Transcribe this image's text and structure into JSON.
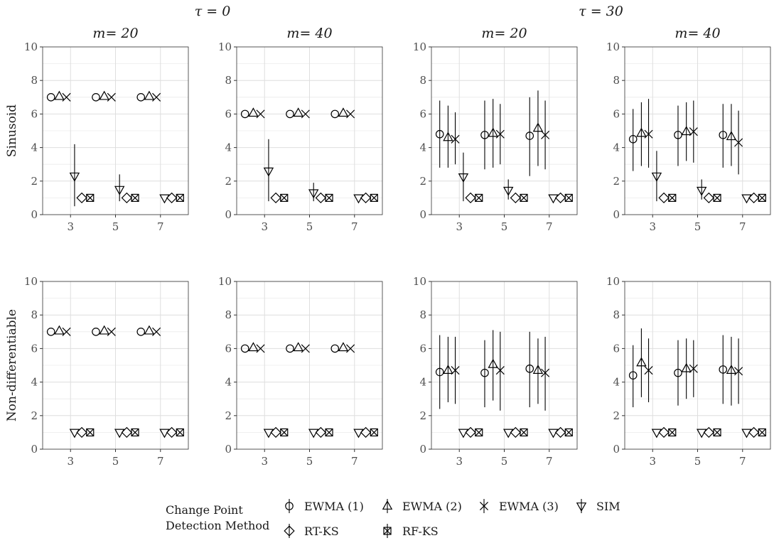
{
  "chart_data": {
    "type": "scatter",
    "title": "",
    "ylim": [
      0,
      10
    ],
    "y_ticks": [
      0,
      2,
      4,
      6,
      8,
      10
    ],
    "x_categories": [
      3,
      5,
      7
    ],
    "x_tick_labels": [
      "3",
      "5",
      "7"
    ],
    "grid": true,
    "tau_headers": [
      "τ = 0",
      "τ = 30"
    ],
    "m_headers": [
      "m= 20",
      "m= 40",
      "m= 20",
      "m= 40"
    ],
    "row_labels": [
      "Sinusoid",
      "Non-differentiable"
    ],
    "legend": {
      "position": "bottom",
      "title_lines": [
        "Change Point",
        "Detection Method"
      ],
      "entries": [
        {
          "name": "EWMA (1)",
          "shape": "circle-icon"
        },
        {
          "name": "EWMA (2)",
          "shape": "triangle-icon"
        },
        {
          "name": "EWMA (3)",
          "shape": "x-icon"
        },
        {
          "name": "SIM",
          "shape": "down-triangle-icon"
        },
        {
          "name": "RT-KS",
          "shape": "diamond-icon"
        },
        {
          "name": "RF-KS",
          "shape": "boxed-x-icon"
        }
      ]
    },
    "methods": [
      "EWMA (1)",
      "EWMA (2)",
      "EWMA (3)",
      "SIM",
      "RT-KS",
      "RF-KS"
    ],
    "panels": [
      {
        "tau": "τ = 0",
        "m": "m= 20",
        "row": "Sinusoid",
        "series": [
          {
            "method": "EWMA (1)",
            "means": [
              7.0,
              7.0,
              7.0
            ],
            "lower": [
              7.0,
              7.0,
              7.0
            ],
            "upper": [
              7.0,
              7.0,
              7.0
            ]
          },
          {
            "method": "EWMA (2)",
            "means": [
              7.05,
              7.05,
              7.05
            ],
            "lower": [
              7.05,
              7.05,
              7.05
            ],
            "upper": [
              7.05,
              7.05,
              7.05
            ]
          },
          {
            "method": "EWMA (3)",
            "means": [
              7.0,
              7.0,
              7.0
            ],
            "lower": [
              7.0,
              7.0,
              7.0
            ],
            "upper": [
              7.0,
              7.0,
              7.0
            ]
          },
          {
            "method": "SIM",
            "means": [
              2.3,
              1.5,
              1.0
            ],
            "lower": [
              0.5,
              0.8,
              1.0
            ],
            "upper": [
              4.2,
              2.4,
              1.0
            ]
          },
          {
            "method": "RT-KS",
            "means": [
              1.0,
              1.0,
              1.0
            ],
            "lower": [
              1.0,
              1.0,
              1.0
            ],
            "upper": [
              1.0,
              1.0,
              1.0
            ]
          },
          {
            "method": "RF-KS",
            "means": [
              1.0,
              1.0,
              1.0
            ],
            "lower": [
              1.0,
              1.0,
              1.0
            ],
            "upper": [
              1.0,
              1.0,
              1.0
            ]
          }
        ]
      },
      {
        "tau": "τ = 0",
        "m": "m= 40",
        "row": "Sinusoid",
        "series": [
          {
            "method": "EWMA (1)",
            "means": [
              6.0,
              6.0,
              6.0
            ],
            "lower": [
              6.0,
              6.0,
              6.0
            ],
            "upper": [
              6.0,
              6.0,
              6.0
            ]
          },
          {
            "method": "EWMA (2)",
            "means": [
              6.05,
              6.05,
              6.05
            ],
            "lower": [
              6.05,
              6.05,
              6.05
            ],
            "upper": [
              6.05,
              6.05,
              6.05
            ]
          },
          {
            "method": "EWMA (3)",
            "means": [
              6.0,
              6.0,
              6.0
            ],
            "lower": [
              6.0,
              6.0,
              6.0
            ],
            "upper": [
              6.0,
              6.0,
              6.0
            ]
          },
          {
            "method": "SIM",
            "means": [
              2.6,
              1.3,
              1.0
            ],
            "lower": [
              0.8,
              0.8,
              1.0
            ],
            "upper": [
              4.5,
              1.9,
              1.0
            ]
          },
          {
            "method": "RT-KS",
            "means": [
              1.0,
              1.0,
              1.0
            ],
            "lower": [
              1.0,
              1.0,
              1.0
            ],
            "upper": [
              1.0,
              1.0,
              1.0
            ]
          },
          {
            "method": "RF-KS",
            "means": [
              1.0,
              1.0,
              1.0
            ],
            "lower": [
              1.0,
              1.0,
              1.0
            ],
            "upper": [
              1.0,
              1.0,
              1.0
            ]
          }
        ]
      },
      {
        "tau": "τ = 30",
        "m": "m= 20",
        "row": "Sinusoid",
        "series": [
          {
            "method": "EWMA (1)",
            "means": [
              4.8,
              4.75,
              4.7
            ],
            "lower": [
              2.8,
              2.7,
              2.3
            ],
            "upper": [
              6.8,
              6.8,
              7.0
            ]
          },
          {
            "method": "EWMA (2)",
            "means": [
              4.6,
              4.85,
              5.15
            ],
            "lower": [
              2.8,
              2.8,
              2.9
            ],
            "upper": [
              6.5,
              6.9,
              7.4
            ]
          },
          {
            "method": "EWMA (3)",
            "means": [
              4.5,
              4.8,
              4.75
            ],
            "lower": [
              3.0,
              3.0,
              2.7
            ],
            "upper": [
              6.1,
              6.6,
              6.8
            ]
          },
          {
            "method": "SIM",
            "means": [
              2.25,
              1.45,
              1.0
            ],
            "lower": [
              0.8,
              0.9,
              1.0
            ],
            "upper": [
              3.7,
              2.1,
              1.0
            ]
          },
          {
            "method": "RT-KS",
            "means": [
              1.0,
              1.0,
              1.0
            ],
            "lower": [
              1.0,
              1.0,
              1.0
            ],
            "upper": [
              1.0,
              1.0,
              1.0
            ]
          },
          {
            "method": "RF-KS",
            "means": [
              1.0,
              1.0,
              1.0
            ],
            "lower": [
              1.0,
              1.0,
              1.0
            ],
            "upper": [
              1.0,
              1.0,
              1.0
            ]
          }
        ]
      },
      {
        "tau": "τ = 30",
        "m": "m= 40",
        "row": "Sinusoid",
        "series": [
          {
            "method": "EWMA (1)",
            "means": [
              4.5,
              4.75,
              4.75
            ],
            "lower": [
              2.6,
              2.9,
              2.8
            ],
            "upper": [
              6.3,
              6.5,
              6.6
            ]
          },
          {
            "method": "EWMA (2)",
            "means": [
              4.85,
              4.95,
              4.65
            ],
            "lower": [
              2.9,
              3.2,
              2.9
            ],
            "upper": [
              6.7,
              6.7,
              6.6
            ]
          },
          {
            "method": "EWMA (3)",
            "means": [
              4.8,
              4.95,
              4.3
            ],
            "lower": [
              2.8,
              3.1,
              2.4
            ],
            "upper": [
              6.9,
              6.8,
              6.2
            ]
          },
          {
            "method": "SIM",
            "means": [
              2.3,
              1.45,
              1.0
            ],
            "lower": [
              0.8,
              0.9,
              1.0
            ],
            "upper": [
              3.8,
              2.1,
              1.0
            ]
          },
          {
            "method": "RT-KS",
            "means": [
              1.0,
              1.0,
              1.0
            ],
            "lower": [
              1.0,
              1.0,
              1.0
            ],
            "upper": [
              1.0,
              1.0,
              1.0
            ]
          },
          {
            "method": "RF-KS",
            "means": [
              1.0,
              1.0,
              1.0
            ],
            "lower": [
              1.0,
              1.0,
              1.0
            ],
            "upper": [
              1.0,
              1.0,
              1.0
            ]
          }
        ]
      },
      {
        "tau": "τ = 0",
        "m": "m= 20",
        "row": "Non-differentiable",
        "series": [
          {
            "method": "EWMA (1)",
            "means": [
              7.0,
              7.0,
              7.0
            ],
            "lower": [
              7.0,
              7.0,
              7.0
            ],
            "upper": [
              7.0,
              7.0,
              7.0
            ]
          },
          {
            "method": "EWMA (2)",
            "means": [
              7.05,
              7.05,
              7.05
            ],
            "lower": [
              7.05,
              7.05,
              7.05
            ],
            "upper": [
              7.05,
              7.05,
              7.05
            ]
          },
          {
            "method": "EWMA (3)",
            "means": [
              7.0,
              7.0,
              7.0
            ],
            "lower": [
              7.0,
              7.0,
              7.0
            ],
            "upper": [
              7.0,
              7.0,
              7.0
            ]
          },
          {
            "method": "SIM",
            "means": [
              1.0,
              1.0,
              1.0
            ],
            "lower": [
              1.0,
              1.0,
              1.0
            ],
            "upper": [
              1.0,
              1.0,
              1.0
            ]
          },
          {
            "method": "RT-KS",
            "means": [
              1.0,
              1.0,
              1.0
            ],
            "lower": [
              1.0,
              1.0,
              1.0
            ],
            "upper": [
              1.0,
              1.0,
              1.0
            ]
          },
          {
            "method": "RF-KS",
            "means": [
              1.0,
              1.0,
              1.0
            ],
            "lower": [
              1.0,
              1.0,
              1.0
            ],
            "upper": [
              1.0,
              1.0,
              1.0
            ]
          }
        ]
      },
      {
        "tau": "τ = 0",
        "m": "m= 40",
        "row": "Non-differentiable",
        "series": [
          {
            "method": "EWMA (1)",
            "means": [
              6.0,
              6.0,
              6.0
            ],
            "lower": [
              6.0,
              6.0,
              6.0
            ],
            "upper": [
              6.0,
              6.0,
              6.0
            ]
          },
          {
            "method": "EWMA (2)",
            "means": [
              6.05,
              6.05,
              6.05
            ],
            "lower": [
              6.05,
              6.05,
              6.05
            ],
            "upper": [
              6.05,
              6.05,
              6.05
            ]
          },
          {
            "method": "EWMA (3)",
            "means": [
              6.0,
              6.0,
              6.0
            ],
            "lower": [
              6.0,
              6.0,
              6.0
            ],
            "upper": [
              6.0,
              6.0,
              6.0
            ]
          },
          {
            "method": "SIM",
            "means": [
              1.0,
              1.0,
              1.0
            ],
            "lower": [
              1.0,
              1.0,
              1.0
            ],
            "upper": [
              1.0,
              1.0,
              1.0
            ]
          },
          {
            "method": "RT-KS",
            "means": [
              1.0,
              1.0,
              1.0
            ],
            "lower": [
              1.0,
              1.0,
              1.0
            ],
            "upper": [
              1.0,
              1.0,
              1.0
            ]
          },
          {
            "method": "RF-KS",
            "means": [
              1.0,
              1.0,
              1.0
            ],
            "lower": [
              1.0,
              1.0,
              1.0
            ],
            "upper": [
              1.0,
              1.0,
              1.0
            ]
          }
        ]
      },
      {
        "tau": "τ = 30",
        "m": "m= 20",
        "row": "Non-differentiable",
        "series": [
          {
            "method": "EWMA (1)",
            "means": [
              4.6,
              4.55,
              4.8
            ],
            "lower": [
              2.4,
              2.5,
              2.5
            ],
            "upper": [
              6.8,
              6.5,
              7.0
            ]
          },
          {
            "method": "EWMA (2)",
            "means": [
              4.7,
              5.05,
              4.7
            ],
            "lower": [
              2.8,
              2.9,
              2.7
            ],
            "upper": [
              6.7,
              7.1,
              6.6
            ]
          },
          {
            "method": "EWMA (3)",
            "means": [
              4.7,
              4.7,
              4.55
            ],
            "lower": [
              2.7,
              2.3,
              2.3
            ],
            "upper": [
              6.7,
              7.0,
              6.7
            ]
          },
          {
            "method": "SIM",
            "means": [
              1.0,
              1.0,
              1.0
            ],
            "lower": [
              1.0,
              1.0,
              1.0
            ],
            "upper": [
              1.0,
              1.0,
              1.0
            ]
          },
          {
            "method": "RT-KS",
            "means": [
              1.0,
              1.0,
              1.0
            ],
            "lower": [
              1.0,
              1.0,
              1.0
            ],
            "upper": [
              1.0,
              1.0,
              1.0
            ]
          },
          {
            "method": "RF-KS",
            "means": [
              1.0,
              1.0,
              1.0
            ],
            "lower": [
              1.0,
              1.0,
              1.0
            ],
            "upper": [
              1.0,
              1.0,
              1.0
            ]
          }
        ]
      },
      {
        "tau": "τ = 30",
        "m": "m= 40",
        "row": "Non-differentiable",
        "series": [
          {
            "method": "EWMA (1)",
            "means": [
              4.4,
              4.55,
              4.75
            ],
            "lower": [
              2.5,
              2.6,
              2.7
            ],
            "upper": [
              6.2,
              6.5,
              6.8
            ]
          },
          {
            "method": "EWMA (2)",
            "means": [
              5.15,
              4.8,
              4.7
            ],
            "lower": [
              3.1,
              3.0,
              2.6
            ],
            "upper": [
              7.2,
              6.6,
              6.7
            ]
          },
          {
            "method": "EWMA (3)",
            "means": [
              4.7,
              4.8,
              4.65
            ],
            "lower": [
              2.8,
              3.1,
              2.7
            ],
            "upper": [
              6.6,
              6.5,
              6.6
            ]
          },
          {
            "method": "SIM",
            "means": [
              1.0,
              1.0,
              1.0
            ],
            "lower": [
              1.0,
              1.0,
              1.0
            ],
            "upper": [
              1.0,
              1.0,
              1.0
            ]
          },
          {
            "method": "RT-KS",
            "means": [
              1.0,
              1.0,
              1.0
            ],
            "lower": [
              1.0,
              1.0,
              1.0
            ],
            "upper": [
              1.0,
              1.0,
              1.0
            ]
          },
          {
            "method": "RF-KS",
            "means": [
              1.0,
              1.0,
              1.0
            ],
            "lower": [
              1.0,
              1.0,
              1.0
            ],
            "upper": [
              1.0,
              1.0,
              1.0
            ]
          }
        ]
      }
    ]
  }
}
